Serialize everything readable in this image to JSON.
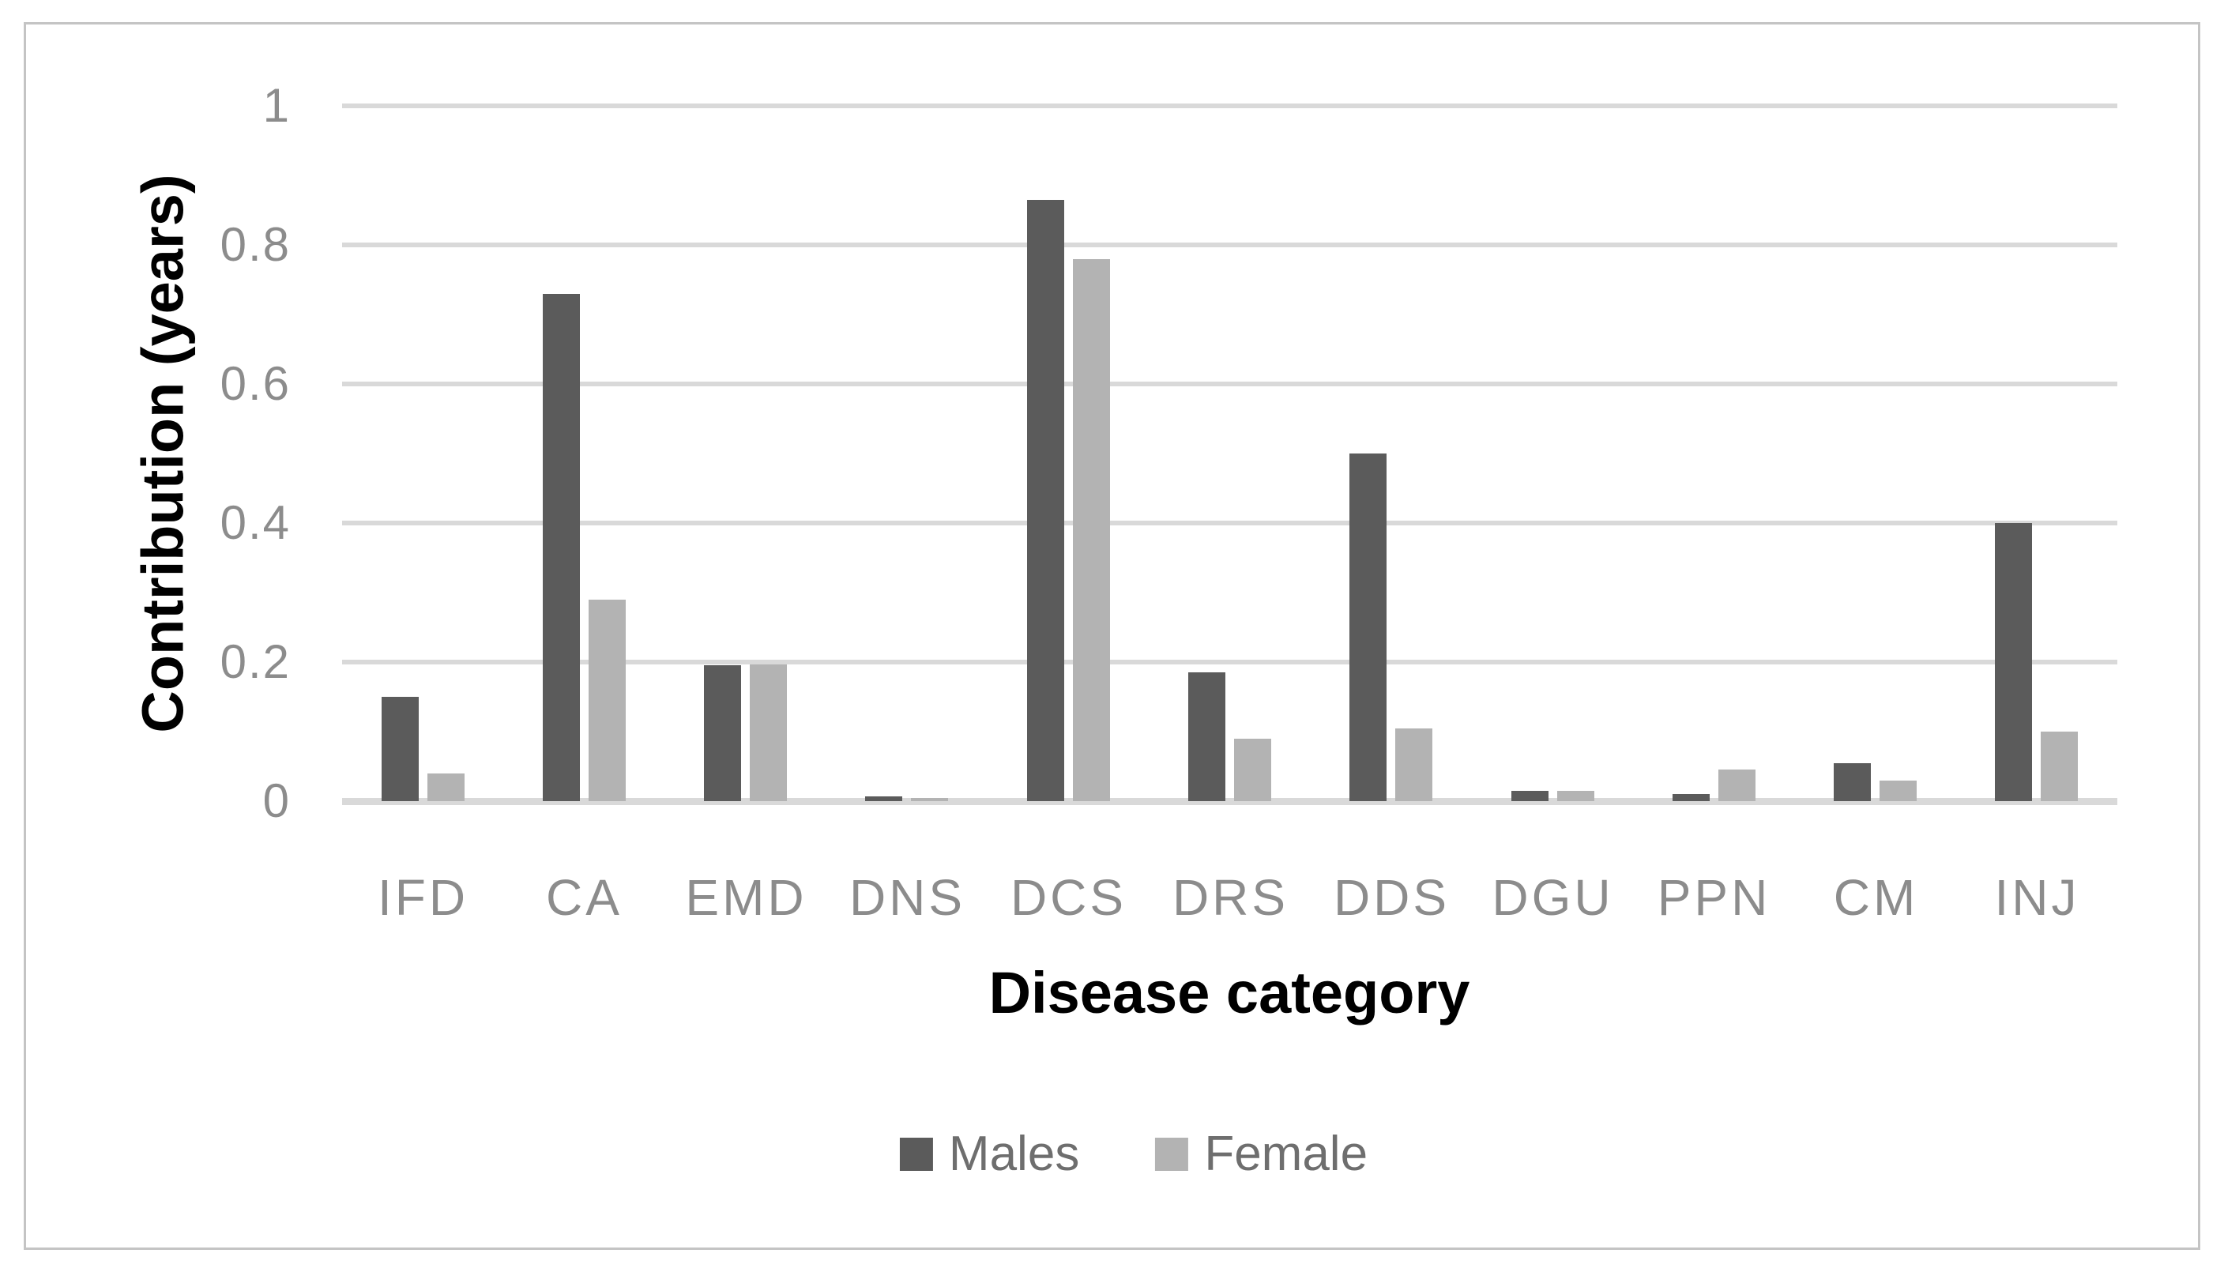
{
  "chart_data": {
    "type": "bar",
    "title": "",
    "xlabel": "Disease category",
    "ylabel": "Contribution (years)",
    "categories": [
      "IFD",
      "CA",
      "EMD",
      "DNS",
      "DCS",
      "DRS",
      "DDS",
      "DGU",
      "PPN",
      "CM",
      "INJ"
    ],
    "series": [
      {
        "name": "Males",
        "color": "#5b5b5b",
        "values": [
          0.15,
          0.73,
          0.195,
          0.007,
          0.865,
          0.185,
          0.5,
          0.015,
          0.01,
          0.055,
          0.4
        ]
      },
      {
        "name": "Female",
        "color": "#b3b3b3",
        "values": [
          0.04,
          0.29,
          0.197,
          0.004,
          0.78,
          0.09,
          0.105,
          0.015,
          0.045,
          0.03,
          0.1
        ]
      }
    ],
    "ylim": [
      0,
      1
    ],
    "yticks": [
      0,
      0.2,
      0.4,
      0.6,
      0.8,
      1
    ],
    "ytick_labels": [
      "0",
      "0.2",
      "0.4",
      "0.6",
      "0.8",
      "1"
    ],
    "grid": "horizontal-only",
    "legend_position": "bottom-center"
  },
  "style": {
    "background": "#ffffff",
    "frame_border": "#c4c4c4",
    "gridline_color": "#d9d9d9",
    "axis_line_color": "#d9d9d9",
    "tick_label_color": "#8c8c8c",
    "legend_text_color": "#6e6e6e",
    "title_color": "#000000"
  }
}
